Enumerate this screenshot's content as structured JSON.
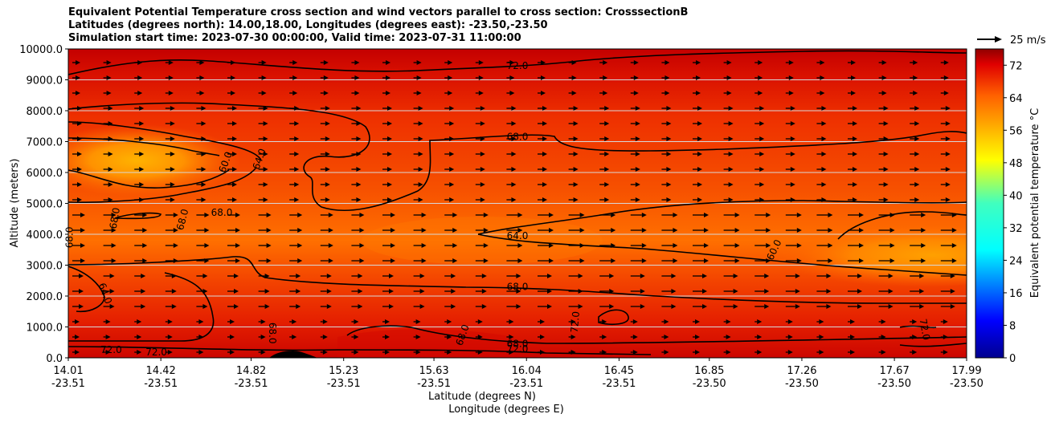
{
  "title": {
    "line1": "Equivalent Potential Temperature cross section and wind vectors parallel to cross section: CrosssectionB",
    "line2": "Latitudes (degrees north): 14.00,18.00, Longitudes (degrees east): -23.50,-23.50",
    "line3": "Simulation start time: 2023-07-30 00:00:00, Valid time: 2023-07-31 11:00:00"
  },
  "axes": {
    "ylabel": "Altitude (meters)",
    "xlabel_lat": "Latitude (degrees N)",
    "xlabel_lon": "Longitude (degrees E)",
    "ylim": [
      0,
      10000
    ],
    "xlim": [
      14.01,
      17.99
    ]
  },
  "colorbar": {
    "label": "Equivalent potential temperature °C",
    "range": [
      0,
      76
    ],
    "ticks": [
      "0",
      "8",
      "16",
      "24",
      "32",
      "40",
      "48",
      "56",
      "64",
      "72"
    ]
  },
  "quiver_key": {
    "label": "25 m/s"
  },
  "chart_data": {
    "type": "contourf",
    "title": "Equivalent Potential Temperature cross section and wind vectors parallel to cross section: CrosssectionB",
    "xlabel": "Latitude (degrees N) / Longitude (degrees E)",
    "ylabel": "Altitude (meters)",
    "x_ticks": [
      {
        "lat": "14.01",
        "lon": "-23.51"
      },
      {
        "lat": "14.42",
        "lon": "-23.51"
      },
      {
        "lat": "14.82",
        "lon": "-23.51"
      },
      {
        "lat": "15.23",
        "lon": "-23.51"
      },
      {
        "lat": "15.63",
        "lon": "-23.51"
      },
      {
        "lat": "16.04",
        "lon": "-23.51"
      },
      {
        "lat": "16.45",
        "lon": "-23.51"
      },
      {
        "lat": "16.85",
        "lon": "-23.50"
      },
      {
        "lat": "17.26",
        "lon": "-23.50"
      },
      {
        "lat": "17.67",
        "lon": "-23.50"
      },
      {
        "lat": "17.99",
        "lon": "-23.50"
      }
    ],
    "y_ticks": [
      "0.0",
      "1000.0",
      "2000.0",
      "3000.0",
      "4000.0",
      "5000.0",
      "6000.0",
      "7000.0",
      "8000.0",
      "9000.0",
      "10000.0"
    ],
    "contour_levels_labeled": [
      "60.0",
      "64.0",
      "68.0",
      "72.0"
    ],
    "contour_labels": [
      {
        "text": "72.0",
        "lat": 16.0,
        "alt": 9350
      },
      {
        "text": "68.0",
        "lat": 16.0,
        "alt": 7050
      },
      {
        "text": "60.0",
        "lat": 14.72,
        "alt": 6300,
        "rot": -70
      },
      {
        "text": "64.0",
        "lat": 14.87,
        "alt": 6400,
        "rot": -70
      },
      {
        "text": "68.0",
        "lat": 14.23,
        "alt": 4500,
        "rot": -80
      },
      {
        "text": "68.0",
        "lat": 14.53,
        "alt": 4450,
        "rot": -75
      },
      {
        "text": "68.0",
        "lat": 14.03,
        "alt": 3900,
        "rot": -90
      },
      {
        "text": "68.0",
        "lat": 14.69,
        "alt": 4600
      },
      {
        "text": "64.0",
        "lat": 16.0,
        "alt": 3850
      },
      {
        "text": "60.0",
        "lat": 17.15,
        "alt": 3450,
        "rot": -65
      },
      {
        "text": "64.0",
        "lat": 14.16,
        "alt": 2050,
        "rot": 70
      },
      {
        "text": "68.0",
        "lat": 16.0,
        "alt": 2200
      },
      {
        "text": "72.0",
        "lat": 16.27,
        "alt": 1150,
        "rot": -85
      },
      {
        "text": "68.0",
        "lat": 15.77,
        "alt": 700,
        "rot": -70
      },
      {
        "text": "68.0",
        "lat": 14.9,
        "alt": 800,
        "rot": 90
      },
      {
        "text": "68.0",
        "lat": 16.0,
        "alt": 350
      },
      {
        "text": "72.0",
        "lat": 16.0,
        "alt": 180
      },
      {
        "text": "72.0",
        "lat": 17.79,
        "alt": 900,
        "rot": 80
      },
      {
        "text": "72.0",
        "lat": 14.2,
        "alt": 150
      },
      {
        "text": "72.0",
        "lat": 14.4,
        "alt": 80
      }
    ],
    "temperature_regions": [
      {
        "desc": "upper layer",
        "alt_range": [
          8500,
          10000
        ],
        "value": 74
      },
      {
        "desc": "mid-upper left core",
        "lat_range": [
          14.01,
          14.6
        ],
        "alt_range": [
          5800,
          7000
        ],
        "value": 57
      },
      {
        "desc": "mid-level right core",
        "lat_range": [
          17.0,
          17.99
        ],
        "alt_range": [
          2700,
          4300
        ],
        "value": 59
      },
      {
        "desc": "near surface",
        "alt_range": [
          0,
          600
        ],
        "value": 72
      }
    ],
    "wind": {
      "direction": "parallel to cross section, mostly eastward/positive",
      "key_speed_ms": 25
    }
  }
}
